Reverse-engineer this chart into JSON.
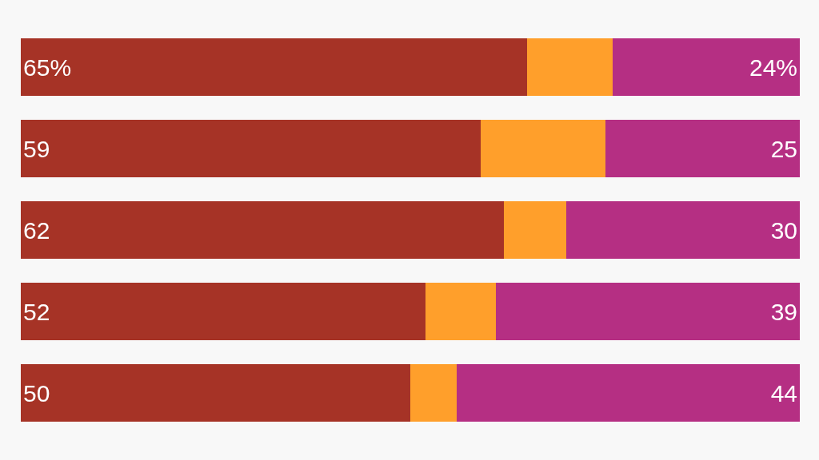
{
  "chart_data": {
    "type": "bar",
    "orientation": "horizontal",
    "stacked": true,
    "categories": [
      null,
      null,
      null,
      null,
      null
    ],
    "xlim": [
      0,
      100
    ],
    "tick_labels": false,
    "grid": false,
    "legend": false,
    "series": [
      {
        "color": "#a63326",
        "values": [
          65,
          59,
          62,
          52,
          50
        ],
        "value_labels": [
          "65%",
          "59",
          "62",
          "52",
          "50"
        ]
      },
      {
        "color": "#ff9f2b",
        "values": [
          11,
          16,
          8,
          9,
          6
        ]
      },
      {
        "color": "#b52f83",
        "values": [
          24,
          25,
          30,
          39,
          44
        ],
        "value_labels": [
          "24%",
          "25",
          "30",
          "39",
          "44"
        ]
      }
    ]
  }
}
